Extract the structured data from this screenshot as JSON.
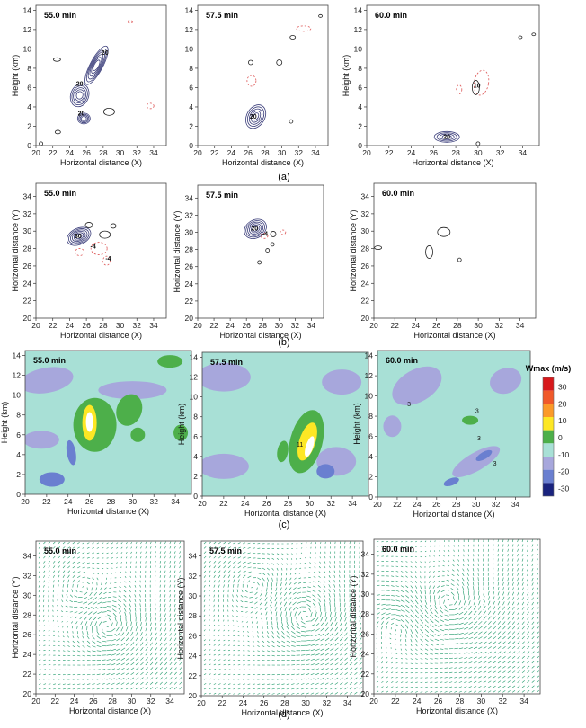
{
  "figure": {
    "row_a_label": "(a)",
    "row_b_label": "(b)",
    "row_c_label": "(c)",
    "row_d_label": "(d)",
    "colorbar_title": "Wmax (m/s)",
    "colorbar_ticks": [
      "30",
      "20",
      "10",
      "0",
      "-10",
      "-20",
      "-30"
    ],
    "colorbar_colors": [
      "#d7191c",
      "#f0592a",
      "#fb9a29",
      "#fde725",
      "#4daf4a",
      "#a8e0d6",
      "#a7a7dc",
      "#6a7fd0",
      "#1a237e"
    ]
  },
  "chart_data": [
    {
      "type": "contour",
      "row": "a",
      "time_label": "55.0 min",
      "xlabel": "Horizontal distance (X)",
      "ylabel": "Height (km)",
      "x_ticks": [
        "20",
        "22",
        "24",
        "26",
        "28",
        "30",
        "32",
        "34"
      ],
      "y_ticks": [
        "0",
        "2",
        "4",
        "6",
        "8",
        "10",
        "12",
        "14"
      ],
      "xlim": [
        20,
        35.5
      ],
      "ylim": [
        0,
        14.5
      ],
      "contour_labels": [
        "20",
        "20",
        "20"
      ]
    },
    {
      "type": "contour",
      "row": "a",
      "time_label": "57.5 min",
      "xlabel": "Horizontal distance (X)",
      "ylabel": "",
      "x_ticks": [
        "20",
        "22",
        "24",
        "26",
        "28",
        "30",
        "32",
        "34"
      ],
      "y_ticks": [
        "0",
        "2",
        "4",
        "6",
        "8",
        "10",
        "12",
        "14"
      ],
      "xlim": [
        20,
        35.5
      ],
      "ylim": [
        0,
        14.5
      ],
      "contour_labels": [
        "20"
      ]
    },
    {
      "type": "contour",
      "row": "a",
      "time_label": "60.0 min",
      "xlabel": "Horizontal distance (X)",
      "ylabel": "Height (km)",
      "x_ticks": [
        "20",
        "22",
        "24",
        "26",
        "28",
        "30",
        "32",
        "34"
      ],
      "y_ticks": [
        "0",
        "2",
        "4",
        "6",
        "8",
        "10",
        "12",
        "14"
      ],
      "xlim": [
        20,
        35.5
      ],
      "ylim": [
        0,
        14.5
      ],
      "contour_labels": [
        "10",
        "20"
      ]
    },
    {
      "type": "contour",
      "row": "b",
      "time_label": "55.0 min",
      "xlabel": "Horizontal distance (X)",
      "ylabel": "Horizontal distance (Y)",
      "x_ticks": [
        "20",
        "22",
        "24",
        "26",
        "28",
        "30",
        "32",
        "34"
      ],
      "y_ticks": [
        "20",
        "22",
        "24",
        "26",
        "28",
        "30",
        "32",
        "34"
      ],
      "xlim": [
        20,
        35.5
      ],
      "ylim": [
        20,
        35.5
      ],
      "contour_labels": [
        "30",
        "-4",
        "-4"
      ]
    },
    {
      "type": "contour",
      "row": "b",
      "time_label": "57.5 min",
      "xlabel": "Horizontal distance (X)",
      "ylabel": "Horizontal distance (Y)",
      "x_ticks": [
        "20",
        "22",
        "24",
        "26",
        "28",
        "30",
        "32",
        "34"
      ],
      "y_ticks": [
        "20",
        "22",
        "24",
        "26",
        "28",
        "30",
        "32",
        "34"
      ],
      "xlim": [
        20,
        35.5
      ],
      "ylim": [
        20,
        35.5
      ],
      "contour_labels": [
        "20",
        "-4"
      ]
    },
    {
      "type": "contour",
      "row": "b",
      "time_label": "60.0 min",
      "xlabel": "Horizontal distance (X)",
      "ylabel": "Horizontal distance (Y)",
      "x_ticks": [
        "20",
        "22",
        "24",
        "26",
        "28",
        "30",
        "32",
        "34"
      ],
      "y_ticks": [
        "20",
        "22",
        "24",
        "26",
        "28",
        "30",
        "32",
        "34"
      ],
      "xlim": [
        20,
        35.5
      ],
      "ylim": [
        20,
        35.5
      ],
      "contour_labels": []
    },
    {
      "type": "heatmap",
      "row": "c",
      "time_label": "55.0 min",
      "xlabel": "Horizontal distance (X)",
      "ylabel": "Height (km)",
      "x_ticks": [
        "20",
        "22",
        "24",
        "26",
        "28",
        "30",
        "32",
        "34"
      ],
      "y_ticks": [
        "0",
        "2",
        "4",
        "6",
        "8",
        "10",
        "12",
        "14"
      ],
      "xlim": [
        20,
        35.5
      ],
      "ylim": [
        0,
        14.5
      ],
      "contour_labels": []
    },
    {
      "type": "heatmap",
      "row": "c",
      "time_label": "57.5 min",
      "xlabel": "Horizontal distance (X)",
      "ylabel": "Height (km)",
      "x_ticks": [
        "20",
        "22",
        "24",
        "26",
        "28",
        "30",
        "32",
        "34"
      ],
      "y_ticks": [
        "0",
        "2",
        "4",
        "6",
        "8",
        "10",
        "12",
        "14"
      ],
      "xlim": [
        20,
        35.5
      ],
      "ylim": [
        0,
        14.5
      ],
      "contour_labels": [
        "11"
      ]
    },
    {
      "type": "heatmap",
      "row": "c",
      "time_label": "60.0 min",
      "xlabel": "Horizontal distance (X)",
      "ylabel": "Height (km)",
      "x_ticks": [
        "20",
        "22",
        "24",
        "26",
        "28",
        "30",
        "32",
        "34"
      ],
      "y_ticks": [
        "0",
        "2",
        "4",
        "6",
        "8",
        "10",
        "12",
        "14"
      ],
      "xlim": [
        20,
        35.5
      ],
      "ylim": [
        0,
        14.5
      ],
      "contour_labels": [
        "3",
        "3",
        "3",
        "3"
      ]
    },
    {
      "type": "vector",
      "row": "d",
      "time_label": "55.0 min",
      "xlabel": "Horizontal distance (X)",
      "ylabel": "Horizontal distance (Y)",
      "x_ticks": [
        "20",
        "22",
        "24",
        "26",
        "28",
        "30",
        "32",
        "34"
      ],
      "y_ticks": [
        "20",
        "22",
        "24",
        "26",
        "28",
        "30",
        "32",
        "34"
      ],
      "xlim": [
        20,
        35.5
      ],
      "ylim": [
        20,
        35.5
      ]
    },
    {
      "type": "vector",
      "row": "d",
      "time_label": "57.5 min",
      "xlabel": "Horizontal distance (X)",
      "ylabel": "Horizontal distance (Y)",
      "x_ticks": [
        "20",
        "22",
        "24",
        "26",
        "28",
        "30",
        "32",
        "34"
      ],
      "y_ticks": [
        "20",
        "22",
        "24",
        "26",
        "28",
        "30",
        "32",
        "34"
      ],
      "xlim": [
        20,
        35.5
      ],
      "ylim": [
        20,
        35.5
      ]
    },
    {
      "type": "vector",
      "row": "d",
      "time_label": "60.0 min",
      "xlabel": "Horizontal distance (X)",
      "ylabel": "Horizontal distance (Y)",
      "x_ticks": [
        "20",
        "22",
        "24",
        "26",
        "28",
        "30",
        "32",
        "34"
      ],
      "y_ticks": [
        "20",
        "22",
        "24",
        "26",
        "28",
        "30",
        "32",
        "34"
      ],
      "xlim": [
        20,
        35.5
      ],
      "ylim": [
        20,
        35.5
      ]
    }
  ]
}
